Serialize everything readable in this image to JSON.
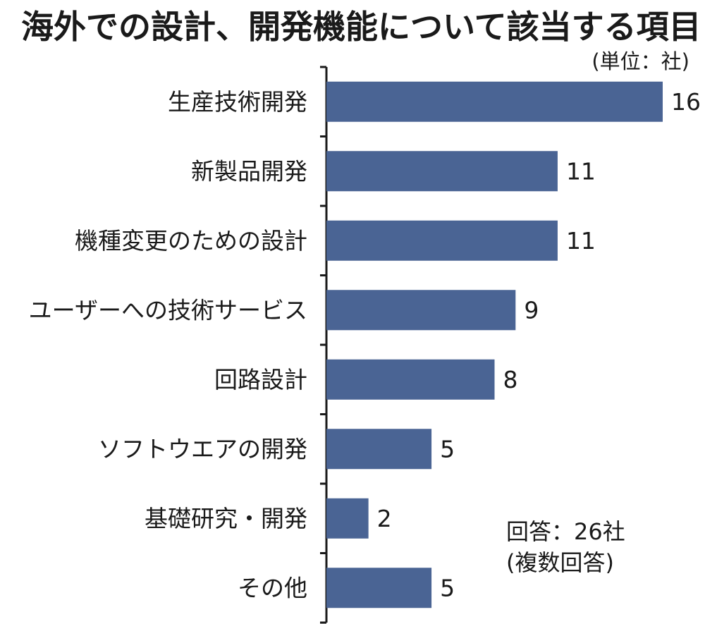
{
  "title": "海外での設計、開発機能について該当する項目",
  "unit_label": "(単位：社)",
  "note": {
    "respondents": "回答：26社",
    "multiple": "(複数回答)"
  },
  "colors": {
    "bar": "#4a6494",
    "axis": "#1a1a1a"
  },
  "chart_data": {
    "type": "bar",
    "orientation": "horizontal",
    "categories": [
      "生産技術開発",
      "新製品開発",
      "機種変更のための設計",
      "ユーザーへの技術サービス",
      "回路設計",
      "ソフトウエアの開発",
      "基礎研究・開発",
      "その他"
    ],
    "values": [
      16,
      11,
      11,
      9,
      8,
      5,
      2,
      5
    ],
    "value_labels": [
      "16",
      "11",
      "11",
      "9",
      "8",
      "5",
      "2",
      "5"
    ],
    "xlim": [
      0,
      16
    ],
    "grid": false,
    "legend": "none"
  }
}
